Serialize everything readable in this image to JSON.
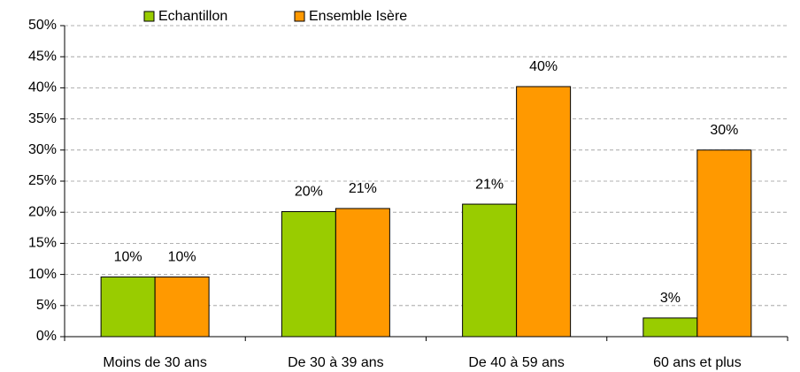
{
  "chart_data": {
    "type": "bar",
    "categories": [
      "Moins de 30 ans",
      "De 30 à 39 ans",
      "De 40 à 59 ans",
      "60 ans et plus"
    ],
    "series": [
      {
        "name": "Echantillon",
        "color": "#99cc00",
        "values": [
          9.6,
          20.1,
          21.3,
          3.0
        ],
        "value_labels": [
          "10%",
          "20%",
          "21%",
          "3%"
        ]
      },
      {
        "name": "Ensemble Isère",
        "color": "#ff9900",
        "values": [
          9.6,
          20.6,
          40.2,
          30.0
        ],
        "value_labels": [
          "10%",
          "21%",
          "40%",
          "30%"
        ]
      }
    ],
    "ylim": [
      0,
      50
    ],
    "yticks": [
      {
        "value": 0,
        "label": "0%"
      },
      {
        "value": 5,
        "label": "5%"
      },
      {
        "value": 10,
        "label": "10%"
      },
      {
        "value": 15,
        "label": "15%"
      },
      {
        "value": 20,
        "label": "20%"
      },
      {
        "value": 25,
        "label": "25%"
      },
      {
        "value": 30,
        "label": "30%"
      },
      {
        "value": 35,
        "label": "35%"
      },
      {
        "value": 40,
        "label": "40%"
      },
      {
        "value": 45,
        "label": "45%"
      },
      {
        "value": 50,
        "label": "50%"
      }
    ],
    "grid": true
  }
}
